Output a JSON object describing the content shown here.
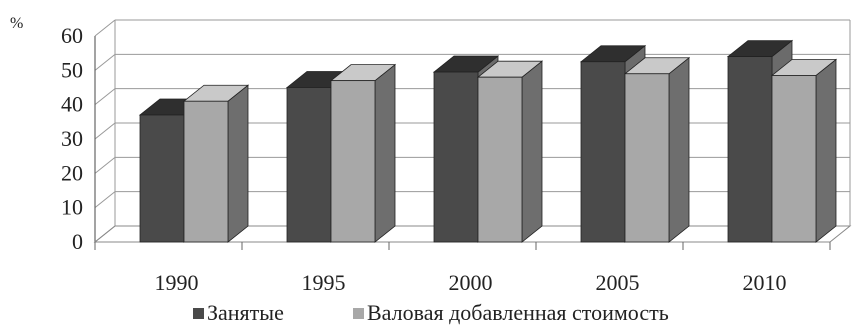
{
  "chart_data": {
    "type": "bar",
    "ylabel": "%",
    "ylim": [
      0,
      60
    ],
    "yticks": [
      0,
      10,
      20,
      30,
      40,
      50,
      60
    ],
    "categories": [
      "1990",
      "1995",
      "2000",
      "2005",
      "2010"
    ],
    "grid": true,
    "legend_position": "bottom",
    "series": [
      {
        "name": "Занятые",
        "values": [
          37,
          45,
          49.5,
          52.5,
          54
        ],
        "color": "#4a4a4a"
      },
      {
        "name": "Валовая добавленная стоимость",
        "values": [
          41,
          47,
          48,
          49,
          48.5
        ],
        "color": "#a8a8a8"
      }
    ]
  }
}
